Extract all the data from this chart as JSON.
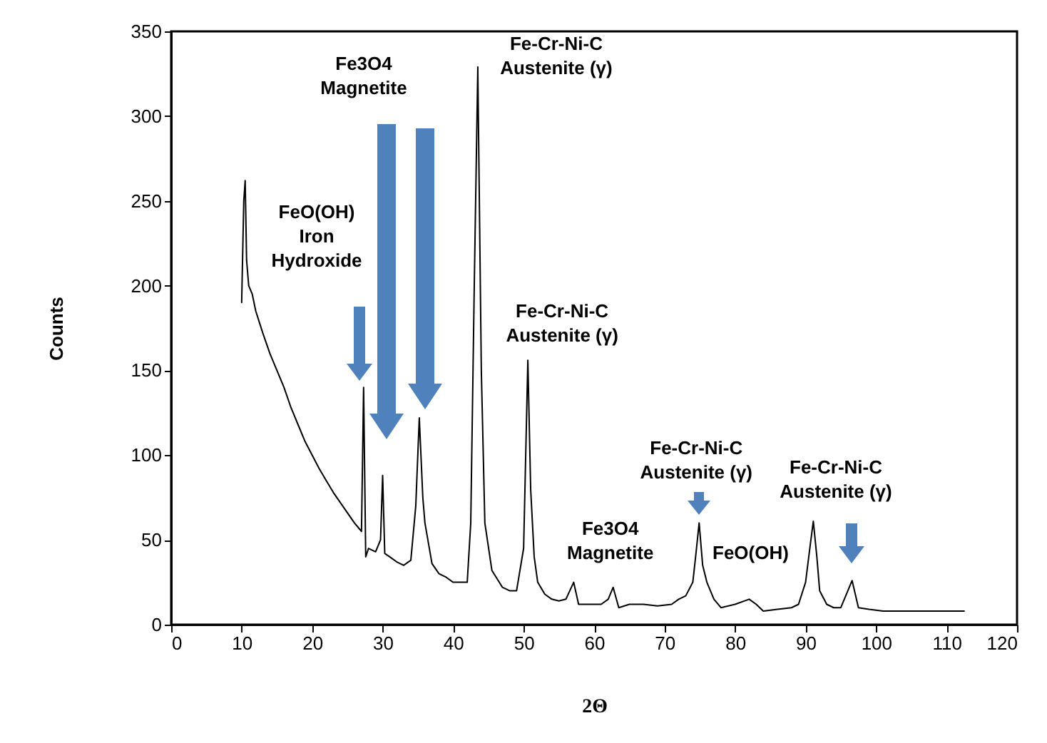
{
  "chart_data": {
    "type": "line",
    "xlabel": "2Θ",
    "ylabel": "Counts",
    "xlim": [
      0,
      120
    ],
    "xticks": [
      0,
      10,
      20,
      30,
      40,
      50,
      60,
      70,
      80,
      90,
      100,
      110,
      120
    ],
    "ylim": [
      0,
      350
    ],
    "yticks": [
      0,
      50,
      100,
      150,
      200,
      250,
      300,
      350
    ],
    "grid": false,
    "marker": "none",
    "line_style": "solid",
    "series": [
      {
        "color": "#000000",
        "x": [
          10,
          10.3,
          10.5,
          10.7,
          11,
          11.5,
          12,
          13,
          14,
          15,
          16,
          17,
          18,
          19,
          20,
          21,
          22,
          23,
          24,
          25,
          26,
          27,
          27.3,
          27.6,
          28,
          29,
          29.7,
          30,
          30.3,
          31,
          32,
          33,
          34,
          34.7,
          35.2,
          35.7,
          36,
          37,
          38,
          39,
          40,
          41,
          42,
          42.5,
          43,
          43.5,
          44,
          44.5,
          45.5,
          47,
          48,
          49,
          50,
          50.6,
          51,
          51.5,
          52,
          53,
          54,
          55,
          56,
          57.1,
          57.8,
          59,
          60,
          61,
          62,
          62.7,
          63.5,
          65,
          67,
          69,
          71,
          72,
          73,
          74,
          74.4,
          74.9,
          75.4,
          76,
          77,
          78,
          80,
          82,
          83,
          84,
          86,
          88,
          89,
          90,
          90.6,
          91.1,
          91.6,
          92,
          93,
          94,
          95,
          96.6,
          97.5,
          99,
          101,
          103,
          105,
          107,
          109,
          111,
          112.5
        ],
        "values": [
          190,
          250,
          262,
          215,
          200,
          195,
          185,
          172,
          160,
          150,
          140,
          128,
          118,
          108,
          100,
          92,
          85,
          78,
          72,
          66,
          60,
          55,
          140,
          40,
          45,
          43,
          50,
          88,
          42,
          40,
          37,
          35,
          38,
          70,
          122,
          75,
          60,
          36,
          30,
          28,
          25,
          25,
          25,
          60,
          200,
          329,
          150,
          60,
          32,
          22,
          20,
          20,
          45,
          156,
          80,
          40,
          25,
          18,
          15,
          14,
          15,
          25,
          12,
          12,
          12,
          12,
          15,
          22,
          10,
          12,
          12,
          11,
          12,
          15,
          17,
          25,
          40,
          60,
          35,
          25,
          15,
          10,
          12,
          15,
          12,
          8,
          9,
          10,
          12,
          25,
          45,
          61,
          40,
          20,
          12,
          10,
          10,
          26,
          10,
          9,
          8,
          8,
          8,
          8,
          8,
          8,
          8
        ]
      }
    ],
    "annotations": [
      "FeO(OH)\nIron\nHydroxide",
      "Fe3O4\nMagnetite",
      {
        "text": "Fe-Cr-Ni-C\nAustenite (γ)",
        "x": 43.5,
        "y": 329
      },
      {
        "text": "Fe-Cr-Ni-C\nAustenite (γ)",
        "x": 50.6,
        "y": 156
      },
      {
        "text": "Fe3O4\nMagnetite",
        "x": 62.7,
        "y": 22
      },
      {
        "text": "Fe-Cr-Ni-C\nAustenite (γ)",
        "x": 74.9,
        "y": 60
      },
      {
        "text": "FeO(OH)",
        "x": 82,
        "y": 15
      },
      "Fe-Cr-Ni-C\nAustenite (γ)"
    ]
  }
}
